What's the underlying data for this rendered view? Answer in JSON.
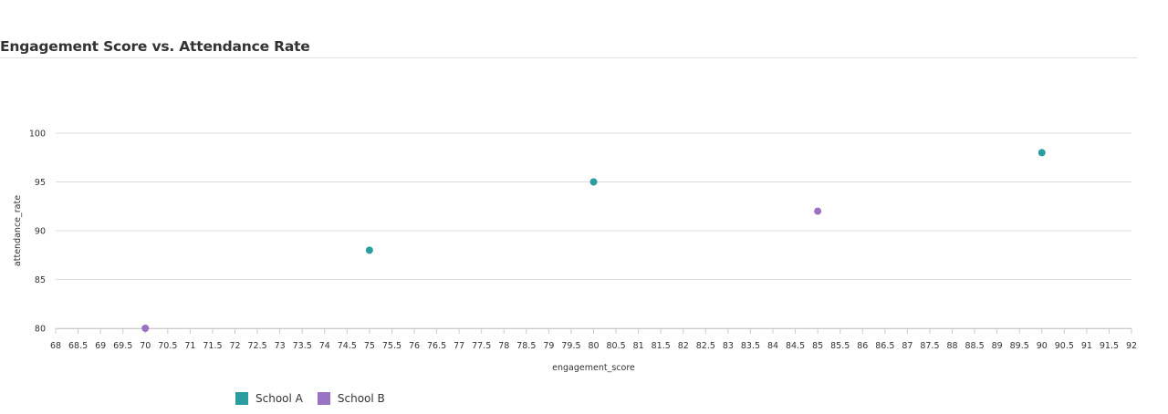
{
  "chart_data": {
    "type": "scatter",
    "title": "Engagement Score vs. Attendance Rate",
    "xlabel": "engagement_score",
    "ylabel": "attendance_rate",
    "xlim": [
      68,
      92
    ],
    "ylim": [
      80,
      100
    ],
    "x_ticks": [
      "68",
      "68.5",
      "69",
      "69.5",
      "70",
      "70.5",
      "71",
      "71.5",
      "72",
      "72.5",
      "73",
      "73.5",
      "74",
      "74.5",
      "75",
      "75.5",
      "76",
      "76.5",
      "77",
      "77.5",
      "78",
      "78.5",
      "79",
      "79.5",
      "80",
      "80.5",
      "81",
      "81.5",
      "82",
      "82.5",
      "83",
      "83.5",
      "84",
      "84.5",
      "85",
      "85.5",
      "86",
      "86.5",
      "87",
      "87.5",
      "88",
      "88.5",
      "89",
      "89.5",
      "90",
      "90.5",
      "91",
      "91.5",
      "92"
    ],
    "y_ticks": [
      "80",
      "85",
      "90",
      "95",
      "100"
    ],
    "grid": "horizontal",
    "legend_position": "bottom-left",
    "series": [
      {
        "name": "School A",
        "color": "#2a9d9f",
        "points": [
          {
            "x": 75,
            "y": 88
          },
          {
            "x": 80,
            "y": 95
          },
          {
            "x": 90,
            "y": 98
          }
        ]
      },
      {
        "name": "School B",
        "color": "#9a72c4",
        "points": [
          {
            "x": 70,
            "y": 80
          },
          {
            "x": 85,
            "y": 92
          }
        ]
      }
    ]
  }
}
